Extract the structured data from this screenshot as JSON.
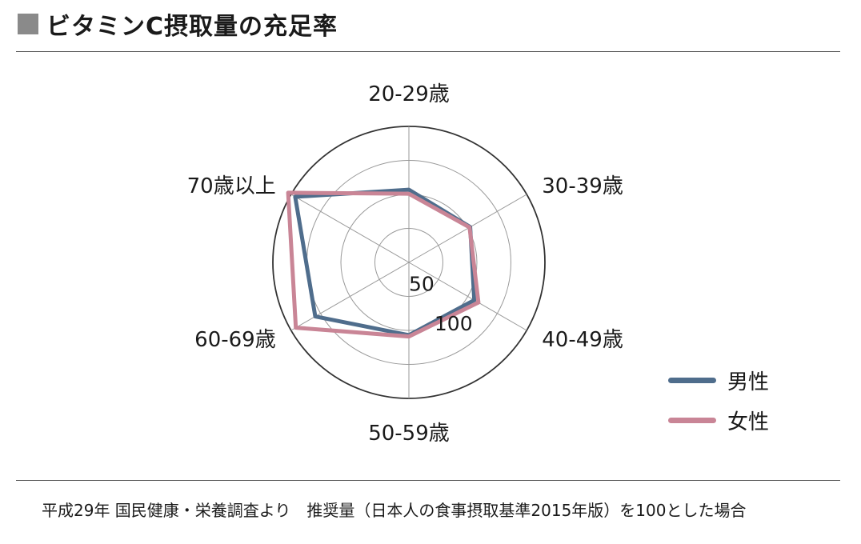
{
  "title": "ビタミンC摂取量の充足率",
  "chart_data": {
    "type": "radar",
    "categories": [
      "20-29歳",
      "30-39歳",
      "40-49歳",
      "50-59歳",
      "60-69歳",
      "70歳以上"
    ],
    "rmax": 200,
    "ring_values": [
      50,
      100,
      150,
      200
    ],
    "ring_labels": [
      {
        "value": 50,
        "text": "50"
      },
      {
        "value": 100,
        "text": "100"
      }
    ],
    "series": [
      {
        "name": "男性",
        "color": "#4f6d8c",
        "values": [
          107,
          104,
          111,
          107,
          159,
          193
        ]
      },
      {
        "name": "女性",
        "color": "#c98596",
        "values": [
          101,
          103,
          118,
          109,
          192,
          205
        ]
      }
    ]
  },
  "legend": {
    "male_label": "男性",
    "female_label": "女性"
  },
  "footnote": "平成29年 国民健康・栄養調査より　推奨量（日本人の食事摂取基準2015年版）を100とした場合"
}
